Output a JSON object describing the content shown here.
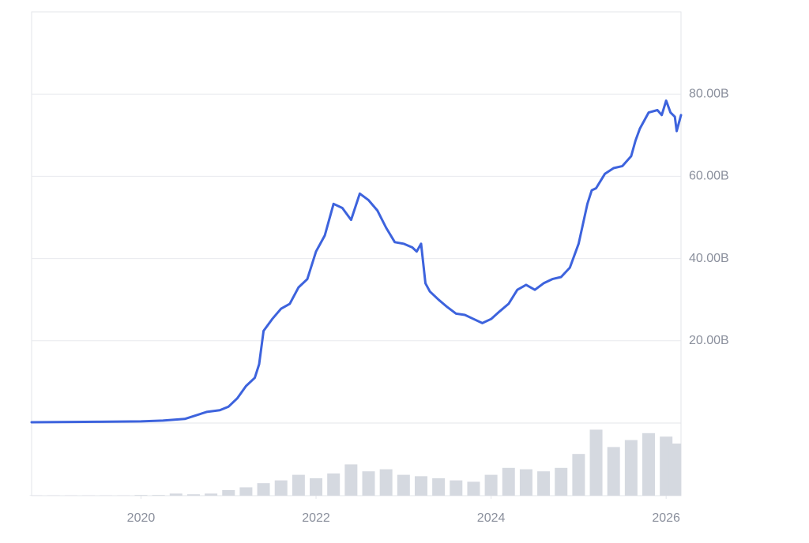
{
  "chart_data": {
    "type": "line",
    "x": [
      2018.75,
      2019.5,
      2020.0,
      2020.25,
      2020.5,
      2020.75,
      2020.9,
      2021.0,
      2021.1,
      2021.2,
      2021.3,
      2021.35,
      2021.4,
      2021.5,
      2021.6,
      2021.7,
      2021.8,
      2021.9,
      2022.0,
      2022.1,
      2022.2,
      2022.3,
      2022.4,
      2022.5,
      2022.6,
      2022.7,
      2022.8,
      2022.9,
      2023.0,
      2023.1,
      2023.15,
      2023.2,
      2023.25,
      2023.3,
      2023.4,
      2023.5,
      2023.6,
      2023.7,
      2023.8,
      2023.9,
      2024.0,
      2024.1,
      2024.2,
      2024.3,
      2024.4,
      2024.5,
      2024.6,
      2024.7,
      2024.8,
      2024.9,
      2025.0,
      2025.1,
      2025.15,
      2025.2,
      2025.3,
      2025.4,
      2025.5,
      2025.6,
      2025.65,
      2025.7,
      2025.8,
      2025.9,
      2025.95,
      2026.0,
      2026.05,
      2026.1,
      2026.12,
      2026.17
    ],
    "series": [
      {
        "color": "#3d63dd",
        "values": [
          0.2,
          0.3,
          0.4,
          0.6,
          1.0,
          2.7,
          3.1,
          4,
          6,
          9,
          11,
          14.3,
          22.4,
          25.3,
          27.8,
          29,
          33,
          35,
          41.7,
          45.6,
          53.3,
          52.3,
          49.4,
          55.8,
          54.2,
          51.7,
          47.5,
          44,
          43.6,
          42.7,
          41.7,
          43.6,
          34,
          32,
          30,
          28.2,
          26.6,
          26.3,
          25.3,
          24.3,
          25.3,
          27.2,
          29,
          32.4,
          33.6,
          32.4,
          34,
          35,
          35.5,
          37.8,
          43.6,
          53.3,
          56.6,
          57.1,
          60.6,
          62,
          62.5,
          64.9,
          68.7,
          71.6,
          75.5,
          76.1,
          74.9,
          78.4,
          75.5,
          74.5,
          71,
          74.9
        ]
      }
    ],
    "xlim": [
      2018.75,
      2026.17
    ],
    "xticks": [
      2020,
      2022,
      2024,
      2026
    ],
    "ylim": [
      0,
      100
    ],
    "yticks": [
      {
        "value": 20,
        "label": "20.00B"
      },
      {
        "value": 40,
        "label": "40.00B"
      },
      {
        "value": 60,
        "label": "60.00B"
      },
      {
        "value": 80,
        "label": "80.00B"
      }
    ],
    "grid": true,
    "volume": {
      "color": "#d5d9e0",
      "ylim": [
        0,
        100
      ],
      "x": [
        2018.8,
        2019.0,
        2019.2,
        2019.4,
        2019.6,
        2019.8,
        2020.0,
        2020.2,
        2020.4,
        2020.6,
        2020.8,
        2021.0,
        2021.2,
        2021.4,
        2021.6,
        2021.8,
        2022.0,
        2022.2,
        2022.4,
        2022.6,
        2022.8,
        2023.0,
        2023.2,
        2023.4,
        2023.6,
        2023.8,
        2024.0,
        2024.2,
        2024.4,
        2024.6,
        2024.8,
        2025.0,
        2025.2,
        2025.4,
        2025.6,
        2025.8,
        2026.0,
        2026.1
      ],
      "values": [
        0.5,
        0.5,
        0.5,
        0.5,
        0.5,
        0.5,
        1,
        1,
        3,
        2,
        3,
        8,
        12,
        18,
        22,
        30,
        25,
        32,
        45,
        35,
        38,
        30,
        28,
        25,
        22,
        20,
        30,
        40,
        38,
        35,
        40,
        60,
        95,
        70,
        80,
        90,
        85,
        75
      ]
    }
  }
}
